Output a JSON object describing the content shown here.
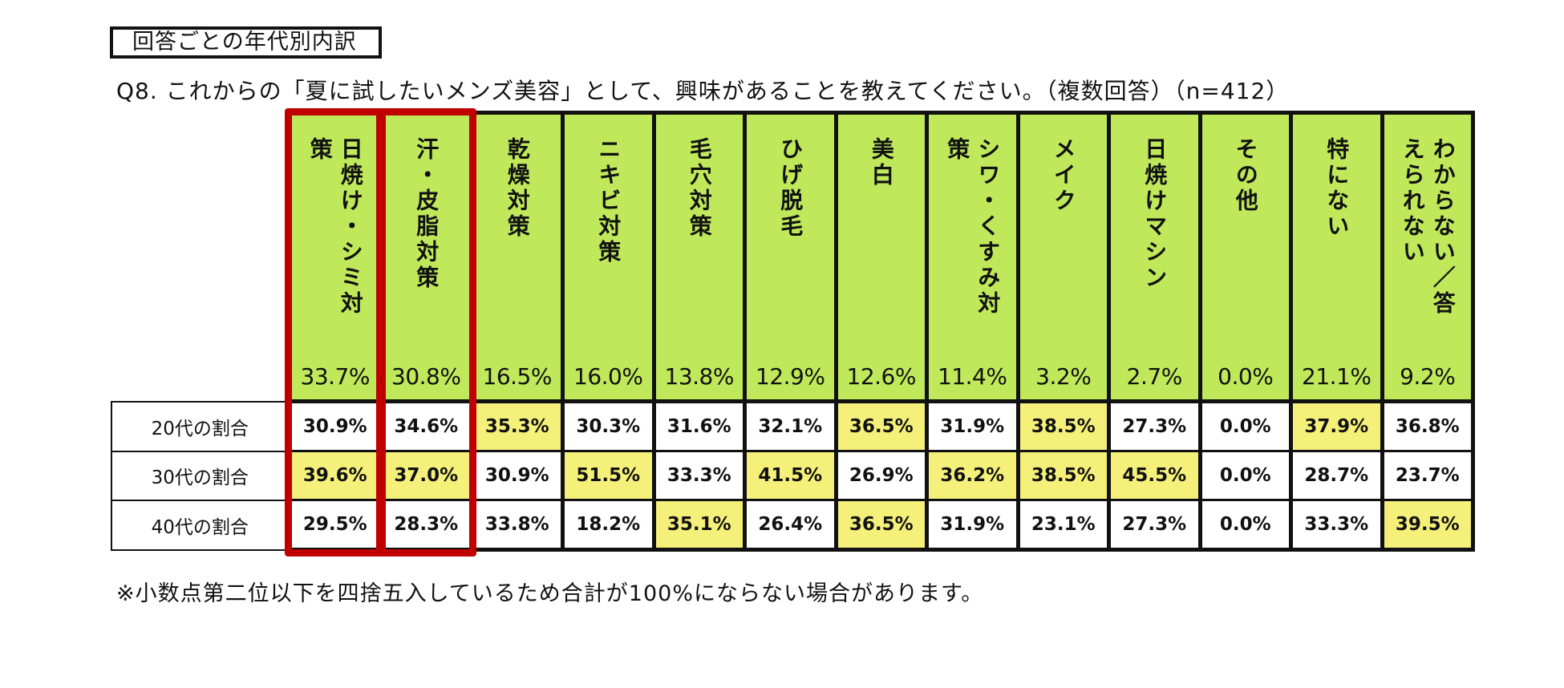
{
  "section_label": "回答ごとの年代別内訳",
  "question": "Q8. これからの「夏に試したいメンズ美容」として、興味があることを教えてください。（複数回答）（n=412）",
  "footnote": "※小数点第二位以下を四捨五入しているため合計が100%にならない場合があります。",
  "colors": {
    "header_green": "#bfe85a",
    "highlight_yellow": "#f4f07a",
    "frame_red": "#c00000"
  },
  "categories": [
    {
      "label": "日焼け・シミ対策",
      "total": "33.7%"
    },
    {
      "label": "汗・皮脂対策",
      "total": "30.8%"
    },
    {
      "label": "乾燥対策",
      "total": "16.5%"
    },
    {
      "label": "ニキビ対策",
      "total": "16.0%"
    },
    {
      "label": "毛穴対策",
      "total": "13.8%"
    },
    {
      "label": "ひげ脱毛",
      "total": "12.9%"
    },
    {
      "label": "美白",
      "total": "12.6%"
    },
    {
      "label": "シワ・くすみ対策",
      "total": "11.4%"
    },
    {
      "label": "メイク",
      "total": "3.2%"
    },
    {
      "label": "日焼けマシン",
      "total": "2.7%"
    },
    {
      "label": "その他",
      "total": "0.0%"
    },
    {
      "label": "特にない",
      "total": "21.1%"
    },
    {
      "label": "わからない／答えられない",
      "total": "9.2%"
    }
  ],
  "rows": [
    {
      "label": "20代の割合",
      "values": [
        "30.9%",
        "34.6%",
        "35.3%",
        "30.3%",
        "31.6%",
        "32.1%",
        "36.5%",
        "31.9%",
        "38.5%",
        "27.3%",
        "0.0%",
        "37.9%",
        "36.8%"
      ]
    },
    {
      "label": "30代の割合",
      "values": [
        "39.6%",
        "37.0%",
        "30.9%",
        "51.5%",
        "33.3%",
        "41.5%",
        "26.9%",
        "36.2%",
        "38.5%",
        "45.5%",
        "0.0%",
        "28.7%",
        "23.7%"
      ]
    },
    {
      "label": "40代の割合",
      "values": [
        "29.5%",
        "28.3%",
        "33.8%",
        "18.2%",
        "35.1%",
        "26.4%",
        "36.5%",
        "31.9%",
        "23.1%",
        "27.3%",
        "0.0%",
        "33.3%",
        "39.5%"
      ]
    }
  ],
  "chart_data": {
    "type": "table",
    "title": "回答ごとの年代別内訳",
    "subtitle": "Q8. これからの「夏に試したいメンズ美容」として、興味があることを教えてください。（複数回答）（n=412）",
    "columns": [
      "日焼け・シミ対策",
      "汗・皮脂対策",
      "乾燥対策",
      "ニキビ対策",
      "毛穴対策",
      "ひげ脱毛",
      "美白",
      "シワ・くすみ対策",
      "メイク",
      "日焼けマシン",
      "その他",
      "特にない",
      "わからない／答えられない"
    ],
    "totals": [
      33.7,
      30.8,
      16.5,
      16.0,
      13.8,
      12.9,
      12.6,
      11.4,
      3.2,
      2.7,
      0.0,
      21.1,
      9.2
    ],
    "series": [
      {
        "name": "20代の割合",
        "values": [
          30.9,
          34.6,
          35.3,
          30.3,
          31.6,
          32.1,
          36.5,
          31.9,
          38.5,
          27.3,
          0.0,
          37.9,
          36.8
        ]
      },
      {
        "name": "30代の割合",
        "values": [
          39.6,
          37.0,
          30.9,
          51.5,
          33.3,
          41.5,
          26.9,
          36.2,
          38.5,
          45.5,
          0.0,
          28.7,
          23.7
        ]
      },
      {
        "name": "40代の割合",
        "values": [
          29.5,
          28.3,
          33.8,
          18.2,
          35.1,
          26.4,
          36.5,
          31.9,
          23.1,
          27.3,
          0.0,
          33.3,
          39.5
        ]
      }
    ],
    "highlighted_cells": [
      [
        0,
        2
      ],
      [
        0,
        6
      ],
      [
        0,
        8
      ],
      [
        0,
        11
      ],
      [
        1,
        0
      ],
      [
        1,
        1
      ],
      [
        1,
        3
      ],
      [
        1,
        5
      ],
      [
        1,
        7
      ],
      [
        1,
        8
      ],
      [
        1,
        9
      ],
      [
        2,
        4
      ],
      [
        2,
        6
      ],
      [
        2,
        12
      ]
    ],
    "emphasized_columns": [
      "日焼け・シミ対策",
      "汗・皮脂対策"
    ]
  }
}
